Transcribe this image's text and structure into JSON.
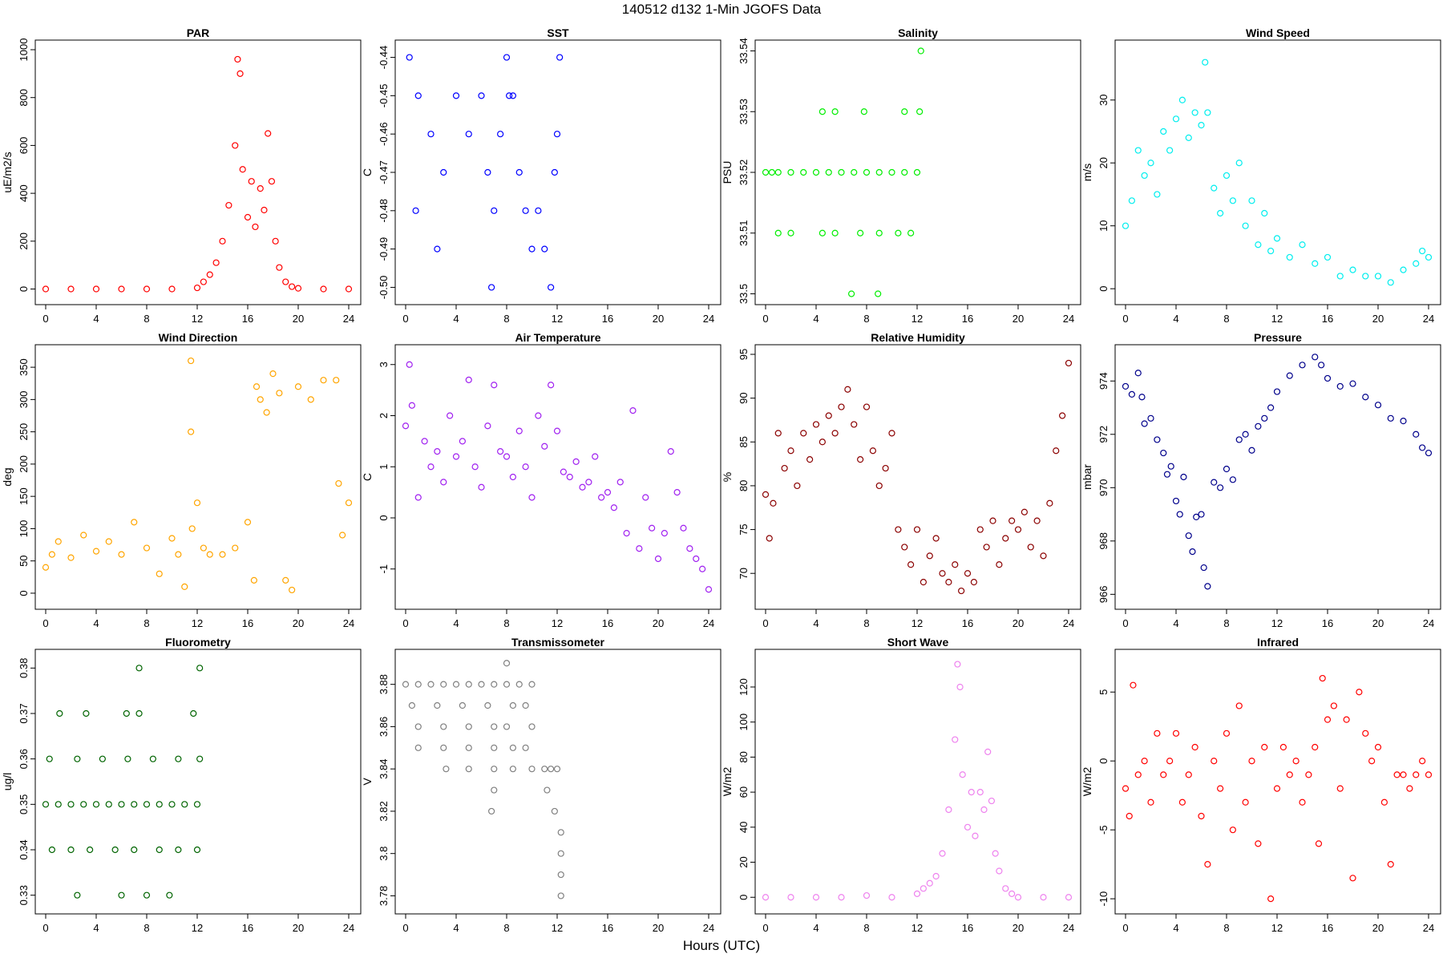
{
  "title": "140512   d132   1-Min  JGOFS Data",
  "xcaption": "Hours (UTC)",
  "chart_data": [
    {
      "type": "scatter",
      "title": "PAR",
      "ylabel": "uE/m2/s",
      "color": "#ff0000",
      "xlim": [
        0,
        24
      ],
      "xticks": [
        0,
        4,
        8,
        12,
        16,
        20,
        24
      ],
      "ylim": [
        -25,
        1000
      ],
      "yticks": [
        0,
        200,
        400,
        600,
        800,
        1000
      ],
      "x": [
        0,
        2,
        4,
        6,
        8,
        10,
        12,
        12.5,
        13,
        13.5,
        14,
        14.5,
        15,
        15.2,
        15.4,
        15.6,
        16,
        16.3,
        16.6,
        17,
        17.3,
        17.6,
        17.9,
        18.2,
        18.5,
        19,
        19.5,
        20,
        22,
        24
      ],
      "y": [
        0,
        0,
        0,
        0,
        0,
        0,
        5,
        30,
        60,
        110,
        200,
        350,
        600,
        960,
        900,
        500,
        300,
        450,
        260,
        420,
        330,
        650,
        450,
        200,
        90,
        30,
        10,
        3,
        0,
        0
      ]
    },
    {
      "type": "scatter",
      "title": "SST",
      "ylabel": "C",
      "color": "#0000ff",
      "xlim": [
        0,
        24
      ],
      "xticks": [
        0,
        4,
        8,
        12,
        16,
        20,
        24
      ],
      "ylim": [
        -0.502,
        -0.438
      ],
      "yticks": [
        -0.5,
        -0.49,
        -0.48,
        -0.47,
        -0.46,
        -0.45,
        -0.44
      ],
      "x": [
        0.3,
        1,
        2,
        3,
        4,
        5,
        6,
        6.5,
        7,
        7.5,
        8,
        8.5,
        9,
        9.5,
        10,
        10.5,
        11,
        11.5,
        12,
        12.2,
        0.8,
        2.5,
        6.8,
        8.2,
        11.8
      ],
      "y": [
        -0.44,
        -0.45,
        -0.46,
        -0.47,
        -0.45,
        -0.46,
        -0.45,
        -0.47,
        -0.48,
        -0.46,
        -0.44,
        -0.45,
        -0.47,
        -0.48,
        -0.49,
        -0.48,
        -0.49,
        -0.5,
        -0.46,
        -0.44,
        -0.48,
        -0.49,
        -0.5,
        -0.45,
        -0.47
      ]
    },
    {
      "type": "scatter",
      "title": "Salinity",
      "ylabel": "PSU",
      "color": "#00ee00",
      "xlim": [
        0,
        24
      ],
      "xticks": [
        0,
        4,
        8,
        12,
        16,
        20,
        24
      ],
      "ylim": [
        33.4998,
        33.5402
      ],
      "yticks": [
        33.5,
        33.51,
        33.52,
        33.53,
        33.54
      ],
      "x": [
        0,
        0.5,
        1,
        2,
        3,
        4,
        5,
        6,
        7,
        8,
        9,
        10,
        11,
        12,
        1,
        2,
        4.5,
        5.5,
        7.5,
        9,
        10.5,
        11.5,
        4.5,
        5.5,
        7.8,
        11,
        12.2,
        6.8,
        8.9,
        12.3
      ],
      "y": [
        33.52,
        33.52,
        33.52,
        33.52,
        33.52,
        33.52,
        33.52,
        33.52,
        33.52,
        33.52,
        33.52,
        33.52,
        33.52,
        33.52,
        33.51,
        33.51,
        33.51,
        33.51,
        33.51,
        33.51,
        33.51,
        33.51,
        33.53,
        33.53,
        33.53,
        33.53,
        33.53,
        33.5,
        33.5,
        33.54
      ]
    },
    {
      "type": "scatter",
      "title": "Wind Speed",
      "ylabel": "m/s",
      "color": "#00eeee",
      "xlim": [
        0,
        24
      ],
      "xticks": [
        0,
        4,
        8,
        12,
        16,
        20,
        24
      ],
      "ylim": [
        -1,
        38
      ],
      "yticks": [
        0,
        10,
        20,
        30
      ],
      "x": [
        0,
        0.5,
        1,
        1.5,
        2,
        2.5,
        3,
        3.5,
        4,
        4.5,
        5,
        5.5,
        6,
        6.3,
        6.5,
        7,
        7.5,
        8,
        8.5,
        9,
        9.5,
        10,
        10.5,
        11,
        11.5,
        12,
        13,
        14,
        15,
        16,
        17,
        18,
        19,
        20,
        21,
        22,
        23,
        23.5,
        24
      ],
      "y": [
        10,
        14,
        22,
        18,
        20,
        15,
        25,
        22,
        27,
        30,
        24,
        28,
        26,
        36,
        28,
        16,
        12,
        18,
        14,
        20,
        10,
        14,
        7,
        12,
        6,
        8,
        5,
        7,
        4,
        5,
        2,
        3,
        2,
        2,
        1,
        3,
        4,
        6,
        5
      ]
    },
    {
      "type": "scatter",
      "title": "Wind Direction",
      "ylabel": "deg",
      "color": "#ffa500",
      "xlim": [
        0,
        24
      ],
      "xticks": [
        0,
        4,
        8,
        12,
        16,
        20,
        24
      ],
      "ylim": [
        -10,
        370
      ],
      "yticks": [
        0,
        50,
        100,
        150,
        200,
        250,
        300,
        350
      ],
      "x": [
        0,
        0.5,
        1,
        2,
        3,
        4,
        5,
        6,
        7,
        8,
        9,
        10,
        10.5,
        11,
        11.5,
        11.5,
        11.6,
        12,
        12.5,
        13,
        14,
        15,
        16,
        16.5,
        16.7,
        17,
        17.5,
        18,
        18.5,
        19,
        19.5,
        20,
        21,
        22,
        23,
        23.2,
        23.5,
        24
      ],
      "y": [
        40,
        60,
        80,
        55,
        90,
        65,
        80,
        60,
        110,
        70,
        30,
        85,
        60,
        10,
        250,
        360,
        100,
        140,
        70,
        60,
        60,
        70,
        110,
        20,
        320,
        300,
        280,
        340,
        310,
        20,
        5,
        320,
        300,
        330,
        330,
        170,
        90,
        140
      ]
    },
    {
      "type": "scatter",
      "title": "Air Temperature",
      "ylabel": "C",
      "color": "#a020f0",
      "xlim": [
        0,
        24
      ],
      "xticks": [
        0,
        4,
        8,
        12,
        16,
        20,
        24
      ],
      "ylim": [
        -1.6,
        3.2
      ],
      "yticks": [
        -1,
        0,
        1,
        2,
        3
      ],
      "x": [
        0,
        0.3,
        0.5,
        1,
        1.5,
        2,
        2.5,
        3,
        3.5,
        4,
        4.5,
        5,
        5.5,
        6,
        6.5,
        7,
        7.5,
        8,
        8.5,
        9,
        9.5,
        10,
        10.5,
        11,
        11.5,
        12,
        12.5,
        13,
        13.5,
        14,
        14.5,
        15,
        15.5,
        16,
        16.5,
        17,
        17.5,
        18,
        18.5,
        19,
        19.5,
        20,
        20.5,
        21,
        21.5,
        22,
        22.5,
        23,
        23.5,
        24
      ],
      "y": [
        1.8,
        3.0,
        2.2,
        0.4,
        1.5,
        1.0,
        1.3,
        0.7,
        2.0,
        1.2,
        1.5,
        2.7,
        1.0,
        0.6,
        1.8,
        2.6,
        1.3,
        1.2,
        0.8,
        1.7,
        1.0,
        0.4,
        2.0,
        1.4,
        2.6,
        1.7,
        0.9,
        0.8,
        1.1,
        0.6,
        0.7,
        1.2,
        0.4,
        0.5,
        0.2,
        0.7,
        -0.3,
        2.1,
        -0.6,
        0.4,
        -0.2,
        -0.8,
        -0.3,
        1.3,
        0.5,
        -0.2,
        -0.6,
        -0.8,
        -1.0,
        -1.4
      ]
    },
    {
      "type": "scatter",
      "title": "Relative Humidity",
      "ylabel": "%",
      "color": "#8b0000",
      "xlim": [
        0,
        24
      ],
      "xticks": [
        0,
        4,
        8,
        12,
        16,
        20,
        24
      ],
      "ylim": [
        67,
        95
      ],
      "yticks": [
        70,
        75,
        80,
        85,
        90,
        95
      ],
      "x": [
        0,
        0.3,
        0.6,
        1,
        1.5,
        2,
        2.5,
        3,
        3.5,
        4,
        4.5,
        5,
        5.5,
        6,
        6.5,
        7,
        7.5,
        8,
        8.5,
        9,
        9.5,
        10,
        10.5,
        11,
        11.5,
        12,
        12.5,
        13,
        13.5,
        14,
        14.5,
        15,
        15.5,
        16,
        16.5,
        17,
        17.5,
        18,
        18.5,
        19,
        19.5,
        20,
        20.5,
        21,
        21.5,
        22,
        22.5,
        23,
        23.5,
        24
      ],
      "y": [
        79,
        74,
        78,
        86,
        82,
        84,
        80,
        86,
        83,
        87,
        85,
        88,
        86,
        89,
        91,
        87,
        83,
        89,
        84,
        80,
        82,
        86,
        75,
        73,
        71,
        75,
        69,
        72,
        74,
        70,
        69,
        71,
        68,
        70,
        69,
        75,
        73,
        76,
        71,
        74,
        76,
        75,
        77,
        73,
        76,
        72,
        78,
        84,
        88,
        94
      ]
    },
    {
      "type": "scatter",
      "title": "Pressure",
      "ylabel": "mbar",
      "color": "#00008b",
      "xlim": [
        0,
        24
      ],
      "xticks": [
        0,
        4,
        8,
        12,
        16,
        20,
        24
      ],
      "ylim": [
        965.8,
        975
      ],
      "yticks": [
        966,
        968,
        970,
        972,
        974
      ],
      "x": [
        0,
        0.5,
        1,
        1.3,
        1.5,
        2,
        2.5,
        3,
        3.3,
        3.6,
        4,
        4.3,
        4.6,
        5,
        5.3,
        5.6,
        6,
        6.2,
        6.5,
        7,
        7.5,
        8,
        8.5,
        9,
        9.5,
        10,
        10.5,
        11,
        11.5,
        12,
        13,
        14,
        15,
        15.5,
        16,
        17,
        18,
        19,
        20,
        21,
        22,
        23,
        23.5,
        24
      ],
      "y": [
        973.8,
        973.5,
        974.3,
        973.4,
        972.4,
        972.6,
        971.8,
        971.3,
        970.5,
        970.8,
        969.5,
        969.0,
        970.4,
        968.2,
        967.6,
        968.9,
        969.0,
        967.0,
        966.3,
        970.2,
        970.0,
        970.7,
        970.3,
        971.8,
        972.0,
        971.4,
        972.3,
        972.6,
        973.0,
        973.6,
        974.2,
        974.6,
        974.9,
        974.6,
        974.1,
        973.8,
        973.9,
        973.4,
        973.1,
        972.6,
        972.5,
        972.0,
        971.5,
        971.3
      ]
    },
    {
      "type": "scatter",
      "title": "Fluorometry",
      "ylabel": "ug/l",
      "color": "#006400",
      "xlim": [
        0,
        24
      ],
      "xticks": [
        0,
        4,
        8,
        12,
        16,
        20,
        24
      ],
      "ylim": [
        0.328,
        0.382
      ],
      "yticks": [
        0.33,
        0.34,
        0.35,
        0.36,
        0.37,
        0.38
      ],
      "x": [
        0,
        1,
        2,
        3,
        4,
        5,
        6,
        7,
        8,
        9,
        10,
        11,
        12,
        0.5,
        2,
        3.5,
        5.5,
        7,
        9,
        10.5,
        12,
        0.3,
        2.5,
        4.5,
        6.5,
        8.5,
        10.5,
        12.2,
        2.5,
        6,
        8,
        9.8,
        1.1,
        3.2,
        6.4,
        7.4,
        11.7,
        7.4,
        12.2
      ],
      "y": [
        0.35,
        0.35,
        0.35,
        0.35,
        0.35,
        0.35,
        0.35,
        0.35,
        0.35,
        0.35,
        0.35,
        0.35,
        0.35,
        0.34,
        0.34,
        0.34,
        0.34,
        0.34,
        0.34,
        0.34,
        0.34,
        0.36,
        0.36,
        0.36,
        0.36,
        0.36,
        0.36,
        0.36,
        0.33,
        0.33,
        0.33,
        0.33,
        0.37,
        0.37,
        0.37,
        0.37,
        0.37,
        0.38,
        0.38
      ]
    },
    {
      "type": "scatter",
      "title": "Transmissometer",
      "ylabel": "V",
      "color": "#808080",
      "xlim": [
        0,
        24
      ],
      "xticks": [
        0,
        4,
        8,
        12,
        16,
        20,
        24
      ],
      "ylim": [
        3.776,
        3.892
      ],
      "yticks": [
        3.78,
        3.8,
        3.82,
        3.84,
        3.86,
        3.88
      ],
      "x": [
        0,
        1,
        2,
        3,
        4,
        5,
        6,
        7,
        8,
        9,
        10,
        0.5,
        2.5,
        4.5,
        6.5,
        8.5,
        9.5,
        1,
        3,
        5,
        7,
        8,
        10,
        1,
        3,
        5,
        7,
        8.5,
        9.5,
        10,
        11,
        11.5,
        12,
        3.2,
        5,
        7,
        8.5,
        7,
        11.2,
        6.8,
        11.8,
        12.3,
        12.3,
        12.3,
        12.3,
        8
      ],
      "y": [
        3.88,
        3.88,
        3.88,
        3.88,
        3.88,
        3.88,
        3.88,
        3.88,
        3.88,
        3.88,
        3.88,
        3.87,
        3.87,
        3.87,
        3.87,
        3.87,
        3.87,
        3.86,
        3.86,
        3.86,
        3.86,
        3.86,
        3.86,
        3.85,
        3.85,
        3.85,
        3.85,
        3.85,
        3.85,
        3.84,
        3.84,
        3.84,
        3.84,
        3.84,
        3.84,
        3.84,
        3.84,
        3.83,
        3.83,
        3.82,
        3.82,
        3.81,
        3.8,
        3.79,
        3.78,
        3.89
      ]
    },
    {
      "type": "scatter",
      "title": "Short Wave",
      "ylabel": "W/m2",
      "color": "#ee82ee",
      "xlim": [
        0,
        24
      ],
      "xticks": [
        0,
        4,
        8,
        12,
        16,
        20,
        24
      ],
      "ylim": [
        -4,
        136
      ],
      "yticks": [
        0,
        20,
        40,
        60,
        80,
        100,
        120
      ],
      "x": [
        0,
        2,
        4,
        6,
        8,
        10,
        12,
        12.5,
        13,
        13.5,
        14,
        14.5,
        15,
        15.2,
        15.4,
        15.6,
        16,
        16.3,
        16.6,
        17,
        17.3,
        17.6,
        17.9,
        18.2,
        18.5,
        19,
        19.5,
        20,
        22,
        24
      ],
      "y": [
        0,
        0,
        0,
        0,
        1,
        0,
        2,
        5,
        8,
        12,
        25,
        50,
        90,
        133,
        120,
        70,
        40,
        60,
        35,
        60,
        50,
        83,
        55,
        25,
        15,
        5,
        2,
        0,
        0,
        0
      ]
    },
    {
      "type": "scatter",
      "title": "Infrared",
      "ylabel": "W/m2",
      "color": "#ff0000",
      "xlim": [
        0,
        24
      ],
      "xticks": [
        0,
        4,
        8,
        12,
        16,
        20,
        24
      ],
      "ylim": [
        -10.4,
        7.4
      ],
      "yticks": [
        -10,
        -5,
        0,
        5
      ],
      "x": [
        0,
        0.3,
        0.6,
        1,
        1.5,
        2,
        2.5,
        3,
        3.5,
        4,
        4.5,
        5,
        5.5,
        6,
        6.5,
        7,
        7.5,
        8,
        8.5,
        9,
        9.5,
        10,
        10.5,
        11,
        11.5,
        12,
        12.5,
        13,
        13.5,
        14,
        14.5,
        15,
        15.3,
        15.6,
        16,
        16.5,
        17,
        17.5,
        18,
        18.5,
        19,
        19.5,
        20,
        20.5,
        21,
        21.5,
        22,
        22.5,
        23,
        23.5,
        24
      ],
      "y": [
        -2,
        -4,
        5.5,
        -1,
        0,
        -3,
        2,
        -1,
        0,
        2,
        -3,
        -1,
        1,
        -4,
        -7.5,
        0,
        -2,
        2,
        -5,
        4,
        -3,
        0,
        -6,
        1,
        -10,
        -2,
        1,
        -1,
        0,
        -3,
        -1,
        1,
        -6,
        6,
        3,
        4,
        -2,
        3,
        -8.5,
        5,
        2,
        0,
        1,
        -3,
        -7.5,
        -1,
        -1,
        -2,
        -1,
        0,
        -1
      ]
    }
  ]
}
